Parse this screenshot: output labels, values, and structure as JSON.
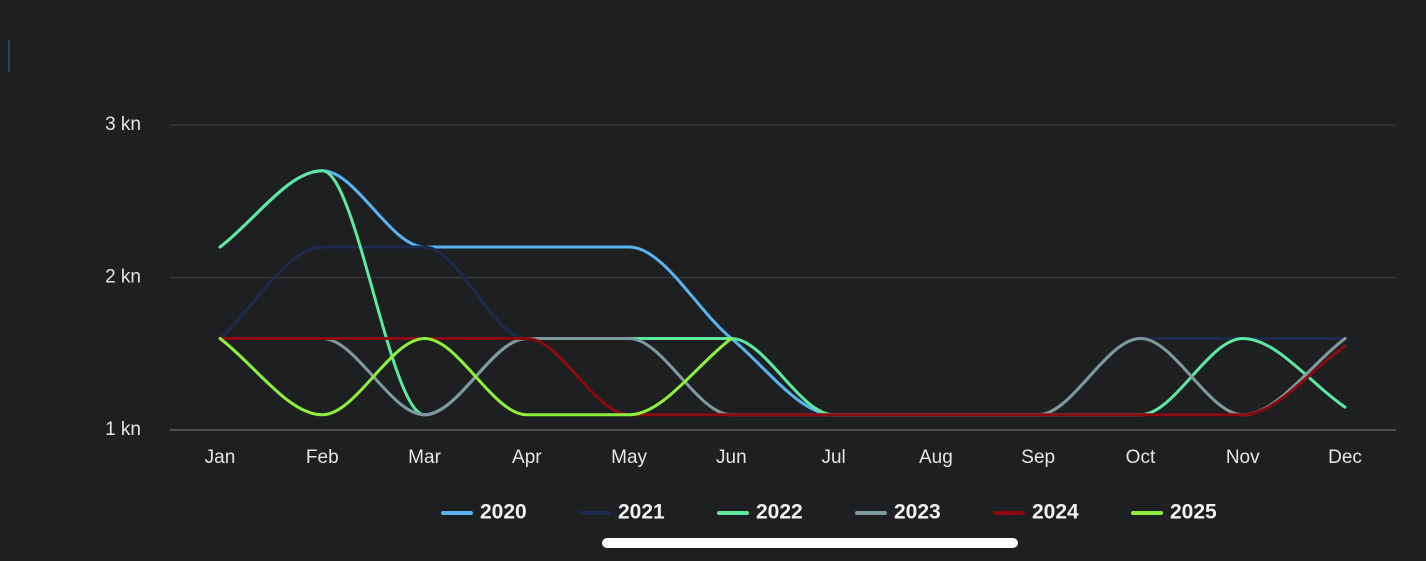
{
  "chart_data": {
    "type": "line",
    "categories": [
      "Jan",
      "Feb",
      "Mar",
      "Apr",
      "May",
      "Jun",
      "Jul",
      "Aug",
      "Sep",
      "Oct",
      "Nov",
      "Dec"
    ],
    "series": [
      {
        "name": "2020",
        "color": "#5ab4f0",
        "values": [
          2.2,
          2.7,
          2.2,
          2.2,
          2.2,
          1.6,
          1.1,
          1.1,
          1.1,
          1.6,
          1.6,
          1.6
        ]
      },
      {
        "name": "2021",
        "color": "#1c2b4d",
        "values": [
          1.6,
          2.2,
          2.2,
          1.6,
          1.6,
          1.1,
          1.1,
          1.1,
          1.1,
          1.6,
          1.6,
          1.6
        ]
      },
      {
        "name": "2022",
        "color": "#5ee8a0",
        "values": [
          2.2,
          2.7,
          1.1,
          1.6,
          1.6,
          1.6,
          1.1,
          1.1,
          1.1,
          1.1,
          1.6,
          1.15
        ]
      },
      {
        "name": "2023",
        "color": "#80999e",
        "values": [
          1.6,
          1.6,
          1.1,
          1.6,
          1.6,
          1.1,
          1.1,
          1.1,
          1.1,
          1.6,
          1.1,
          1.6
        ]
      },
      {
        "name": "2024",
        "color": "#8a0a0f",
        "values": [
          1.6,
          1.6,
          1.6,
          1.6,
          1.1,
          1.1,
          1.1,
          1.1,
          1.1,
          1.1,
          1.1,
          1.55
        ]
      },
      {
        "name": "2025",
        "color": "#8ef03c",
        "values": [
          1.6,
          1.1,
          1.6,
          1.1,
          1.1,
          1.6,
          null,
          null,
          null,
          null,
          null,
          null
        ]
      }
    ],
    "ylim": [
      1,
      3
    ],
    "yticks": [
      {
        "value": 1,
        "label": "1 kn"
      },
      {
        "value": 2,
        "label": "2 kn"
      },
      {
        "value": 3,
        "label": "3 kn"
      }
    ],
    "grid": true,
    "legend": "bottom"
  }
}
